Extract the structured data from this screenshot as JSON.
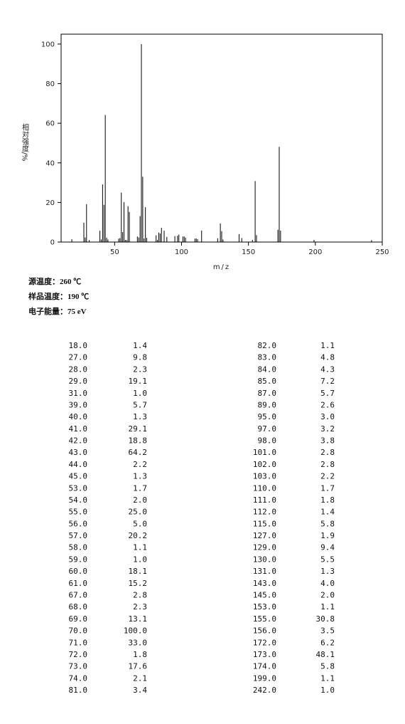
{
  "chart_data": {
    "type": "spectrum",
    "xlabel": "m/z",
    "ylabel": "相对强度/%",
    "x": [
      18,
      27,
      28,
      29,
      31,
      39,
      40,
      41,
      42,
      43,
      44,
      45,
      53,
      54,
      55,
      56,
      57,
      58,
      59,
      60,
      61,
      67,
      68,
      69,
      70,
      71,
      72,
      73,
      74,
      81,
      82,
      83,
      84,
      85,
      87,
      89,
      95,
      97,
      98,
      101,
      102,
      103,
      110,
      111,
      112,
      115,
      127,
      129,
      130,
      131,
      143,
      145,
      153,
      155,
      156,
      172,
      173,
      174,
      199,
      242
    ],
    "values": [
      1.4,
      9.8,
      2.3,
      19.1,
      1.0,
      5.7,
      1.3,
      29.1,
      18.8,
      64.2,
      2.2,
      1.3,
      1.7,
      2.0,
      25.0,
      5.0,
      20.2,
      1.1,
      1.0,
      18.1,
      15.2,
      2.8,
      2.3,
      13.1,
      100.0,
      33.0,
      1.8,
      17.6,
      2.1,
      3.4,
      1.1,
      4.8,
      4.3,
      7.2,
      5.7,
      2.6,
      3.0,
      3.2,
      3.8,
      2.8,
      2.8,
      2.2,
      1.7,
      1.8,
      1.4,
      5.8,
      1.9,
      9.4,
      5.5,
      1.3,
      4.0,
      2.0,
      1.1,
      30.8,
      3.5,
      6.2,
      48.1,
      5.8,
      1.1,
      1.0
    ],
    "color": "#000000",
    "xlim": [
      10,
      250
    ],
    "ylim": [
      0,
      105
    ],
    "xticks": [
      50,
      100,
      150,
      200,
      250
    ],
    "yticks": [
      0,
      20,
      40,
      60,
      80,
      100
    ]
  },
  "conditions": [
    "源温度：260 ℃",
    "样品温度：190 ℃",
    "电子能量：75 eV"
  ],
  "table": {
    "rows": [
      [
        "18.0",
        "1.4",
        "82.0",
        "1.1"
      ],
      [
        "27.0",
        "9.8",
        "83.0",
        "4.8"
      ],
      [
        "28.0",
        "2.3",
        "84.0",
        "4.3"
      ],
      [
        "29.0",
        "19.1",
        "85.0",
        "7.2"
      ],
      [
        "31.0",
        "1.0",
        "87.0",
        "5.7"
      ],
      [
        "39.0",
        "5.7",
        "89.0",
        "2.6"
      ],
      [
        "40.0",
        "1.3",
        "95.0",
        "3.0"
      ],
      [
        "41.0",
        "29.1",
        "97.0",
        "3.2"
      ],
      [
        "42.0",
        "18.8",
        "98.0",
        "3.8"
      ],
      [
        "43.0",
        "64.2",
        "101.0",
        "2.8"
      ],
      [
        "44.0",
        "2.2",
        "102.0",
        "2.8"
      ],
      [
        "45.0",
        "1.3",
        "103.0",
        "2.2"
      ],
      [
        "53.0",
        "1.7",
        "110.0",
        "1.7"
      ],
      [
        "54.0",
        "2.0",
        "111.0",
        "1.8"
      ],
      [
        "55.0",
        "25.0",
        "112.0",
        "1.4"
      ],
      [
        "56.0",
        "5.0",
        "115.0",
        "5.8"
      ],
      [
        "57.0",
        "20.2",
        "127.0",
        "1.9"
      ],
      [
        "58.0",
        "1.1",
        "129.0",
        "9.4"
      ],
      [
        "59.0",
        "1.0",
        "130.0",
        "5.5"
      ],
      [
        "60.0",
        "18.1",
        "131.0",
        "1.3"
      ],
      [
        "61.0",
        "15.2",
        "143.0",
        "4.0"
      ],
      [
        "67.0",
        "2.8",
        "145.0",
        "2.0"
      ],
      [
        "68.0",
        "2.3",
        "153.0",
        "1.1"
      ],
      [
        "69.0",
        "13.1",
        "155.0",
        "30.8"
      ],
      [
        "70.0",
        "100.0",
        "156.0",
        "3.5"
      ],
      [
        "71.0",
        "33.0",
        "172.0",
        "6.2"
      ],
      [
        "72.0",
        "1.8",
        "173.0",
        "48.1"
      ],
      [
        "73.0",
        "17.6",
        "174.0",
        "5.8"
      ],
      [
        "74.0",
        "2.1",
        "199.0",
        "1.1"
      ],
      [
        "81.0",
        "3.4",
        "242.0",
        "1.0"
      ]
    ]
  }
}
